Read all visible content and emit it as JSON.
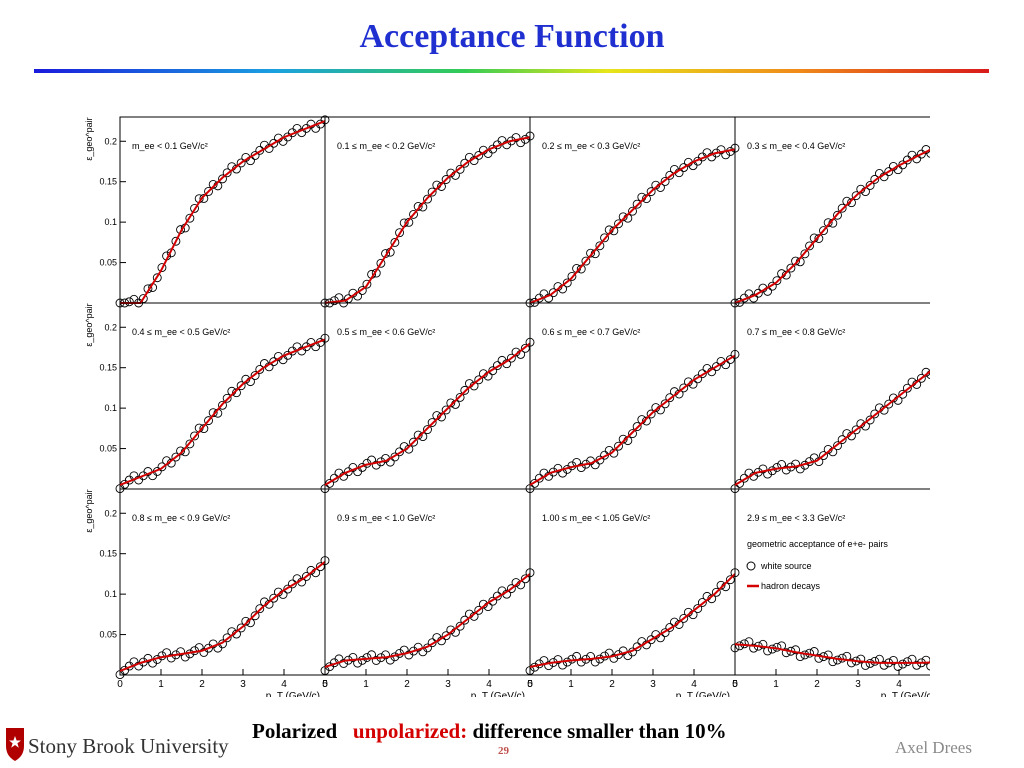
{
  "slide": {
    "title": "Acceptance Function",
    "footer_black_1": "Polarized",
    "footer_red": "unpolarized:",
    "footer_black_2": "difference smaller than 10%",
    "page_number": "29",
    "author": "Axel Drees",
    "university": "Stony Brook University",
    "colors": {
      "title": "#1f2fd0",
      "fit_line": "#d40000",
      "markers": "#000000"
    }
  },
  "chart_data": {
    "type": "scatter",
    "layout": "3x4 grid of panels",
    "ylabel": "ε_geo^pair",
    "xlabel": "p_T (GeV/c)",
    "xlim": [
      0,
      5
    ],
    "ylim": [
      0,
      0.23
    ],
    "x_ticks": [
      "0",
      "1",
      "2",
      "3",
      "4",
      "5"
    ],
    "y_ticks": [
      "0.05",
      "0.1",
      "0.15",
      "0.2"
    ],
    "series_names": [
      "white source",
      "hadron decays"
    ],
    "legend_title": "geometric acceptance of e+e- pairs",
    "panels": [
      {
        "label": "m_ee < 0.1 GeV/c²",
        "x": [
          0,
          0.5,
          1,
          1.5,
          2,
          2.5,
          3,
          3.5,
          4,
          4.5,
          5
        ],
        "y": [
          0,
          0,
          0.04,
          0.09,
          0.13,
          0.155,
          0.175,
          0.19,
          0.205,
          0.215,
          0.225
        ]
      },
      {
        "label": "0.1 ≤ m_ee < 0.2 GeV/c²",
        "x": [
          0,
          0.5,
          1,
          1.5,
          2,
          2.5,
          3,
          3.5,
          4,
          4.5,
          5
        ],
        "y": [
          0,
          0.003,
          0.02,
          0.06,
          0.1,
          0.13,
          0.155,
          0.175,
          0.19,
          0.2,
          0.205
        ]
      },
      {
        "label": "0.2 ≤ m_ee < 0.3 GeV/c²",
        "x": [
          0,
          0.5,
          1,
          1.5,
          2,
          2.5,
          3,
          3.5,
          4,
          4.5,
          5
        ],
        "y": [
          0,
          0.01,
          0.03,
          0.06,
          0.09,
          0.115,
          0.14,
          0.16,
          0.175,
          0.185,
          0.19
        ]
      },
      {
        "label": "0.3 ≤ m_ee < 0.4 GeV/c²",
        "x": [
          0,
          0.5,
          1,
          1.5,
          2,
          2.5,
          3,
          3.5,
          4,
          4.5,
          5
        ],
        "y": [
          0,
          0.01,
          0.025,
          0.05,
          0.08,
          0.11,
          0.135,
          0.155,
          0.17,
          0.183,
          0.195
        ]
      },
      {
        "label": "0.4 ≤ m_ee < 0.5 GeV/c²",
        "x": [
          0,
          0.5,
          1,
          1.5,
          2,
          2.5,
          3,
          3.5,
          4,
          4.5,
          5
        ],
        "y": [
          0.005,
          0.015,
          0.025,
          0.045,
          0.075,
          0.105,
          0.13,
          0.15,
          0.165,
          0.175,
          0.185
        ]
      },
      {
        "label": "0.5 ≤ m_ee < 0.6 GeV/c²",
        "x": [
          0,
          0.5,
          1,
          1.5,
          2,
          2.5,
          3,
          3.5,
          4,
          4.5,
          5
        ],
        "y": [
          0.005,
          0.02,
          0.03,
          0.035,
          0.05,
          0.075,
          0.1,
          0.125,
          0.145,
          0.16,
          0.18
        ]
      },
      {
        "label": "0.6 ≤ m_ee < 0.7 GeV/c²",
        "x": [
          0,
          0.5,
          1,
          1.5,
          2,
          2.5,
          3,
          3.5,
          4,
          4.5,
          5
        ],
        "y": [
          0.005,
          0.02,
          0.027,
          0.032,
          0.045,
          0.07,
          0.095,
          0.115,
          0.135,
          0.15,
          0.165
        ]
      },
      {
        "label": "0.7 ≤ m_ee < 0.8 GeV/c²",
        "x": [
          0,
          0.5,
          1,
          1.5,
          2,
          2.5,
          3,
          3.5,
          4,
          4.5,
          5
        ],
        "y": [
          0.005,
          0.02,
          0.025,
          0.028,
          0.035,
          0.055,
          0.075,
          0.095,
          0.115,
          0.135,
          0.155
        ]
      },
      {
        "label": "0.8 ≤ m_ee < 0.9 GeV/c²",
        "x": [
          0,
          0.5,
          1,
          1.5,
          2,
          2.5,
          3,
          3.5,
          4,
          4.5,
          5
        ],
        "y": [
          0.005,
          0.015,
          0.022,
          0.026,
          0.03,
          0.04,
          0.06,
          0.085,
          0.105,
          0.12,
          0.14
        ]
      },
      {
        "label": "0.9 ≤ m_ee < 1.0 GeV/c²",
        "x": [
          0,
          0.5,
          1,
          1.5,
          2,
          2.5,
          3,
          3.5,
          4,
          4.5,
          5
        ],
        "y": [
          0.01,
          0.018,
          0.02,
          0.022,
          0.027,
          0.035,
          0.05,
          0.07,
          0.09,
          0.105,
          0.125
        ]
      },
      {
        "label": "1.00 ≤ m_ee < 1.05 GeV/c²",
        "x": [
          0,
          0.5,
          1,
          1.5,
          2,
          2.5,
          3,
          3.5,
          4,
          4.5,
          5
        ],
        "y": [
          0.01,
          0.015,
          0.018,
          0.02,
          0.023,
          0.03,
          0.045,
          0.06,
          0.08,
          0.1,
          0.125
        ]
      },
      {
        "label": "2.9 ≤ m_ee < 3.3 GeV/c²",
        "x": [
          0,
          0.5,
          1,
          1.5,
          2,
          2.5,
          3,
          3.5,
          4,
          4.5,
          5
        ],
        "y": [
          0.038,
          0.036,
          0.033,
          0.028,
          0.024,
          0.02,
          0.017,
          0.015,
          0.015,
          0.015,
          0.016
        ]
      }
    ]
  }
}
